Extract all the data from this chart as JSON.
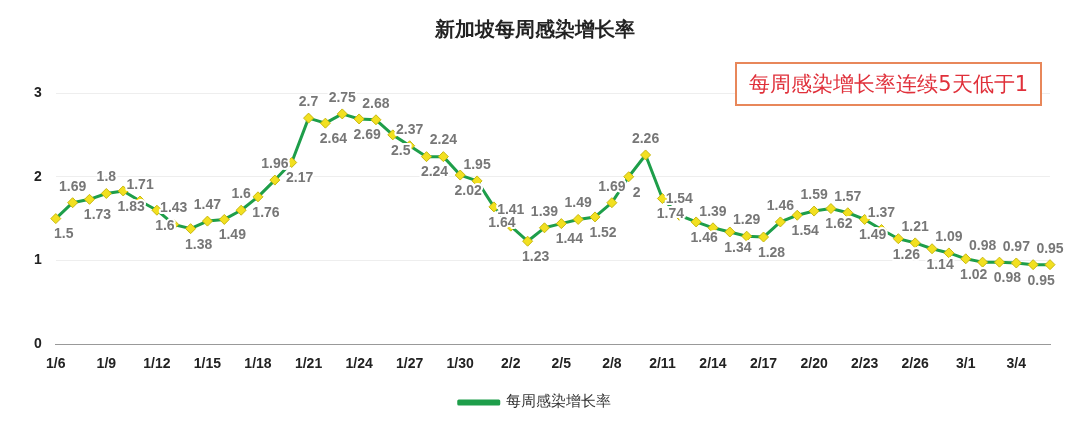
{
  "chart_data": {
    "type": "line",
    "title": "新加坡每周感染增长率",
    "annotations": [
      "每周感染增长率连续5天低于1"
    ],
    "categories": [
      "1/6",
      null,
      null,
      "1/9",
      null,
      null,
      "1/12",
      null,
      null,
      "1/15",
      null,
      null,
      "1/18",
      null,
      null,
      "1/21",
      null,
      null,
      "1/24",
      null,
      null,
      "1/27",
      null,
      null,
      "1/30",
      null,
      null,
      "2/2",
      null,
      null,
      "2/5",
      null,
      null,
      "2/8",
      null,
      null,
      "2/11",
      null,
      null,
      "2/14",
      null,
      null,
      "2/17",
      null,
      null,
      "2/20",
      null,
      null,
      "2/23",
      null,
      null,
      "2/26",
      null,
      null,
      "3/1",
      null,
      null,
      "3/4",
      null,
      null
    ],
    "series": [
      {
        "name": "每周感染增长率",
        "color": "#1e9e4a",
        "values": [
          1.5,
          1.69,
          1.73,
          1.8,
          1.83,
          1.71,
          1.6,
          1.43,
          1.38,
          1.47,
          1.49,
          1.6,
          1.76,
          1.96,
          2.17,
          2.7,
          2.64,
          2.75,
          2.69,
          2.68,
          2.5,
          2.37,
          2.24,
          2.24,
          2.02,
          1.95,
          1.64,
          1.41,
          1.23,
          1.39,
          1.44,
          1.49,
          1.52,
          1.69,
          2,
          2.26,
          1.74,
          1.54,
          1.46,
          1.39,
          1.34,
          1.29,
          1.28,
          1.46,
          1.54,
          1.59,
          1.62,
          1.57,
          1.49,
          1.37,
          1.26,
          1.21,
          1.14,
          1.09,
          1.02,
          0.98,
          0.98,
          0.97,
          0.95,
          0.95
        ]
      }
    ],
    "ylim": [
      0,
      3
    ],
    "yticks": [
      0,
      1,
      2,
      3
    ],
    "grid": "y",
    "legend": "bottom",
    "marker": "diamond",
    "line_style": "solid",
    "data_labels": true
  }
}
